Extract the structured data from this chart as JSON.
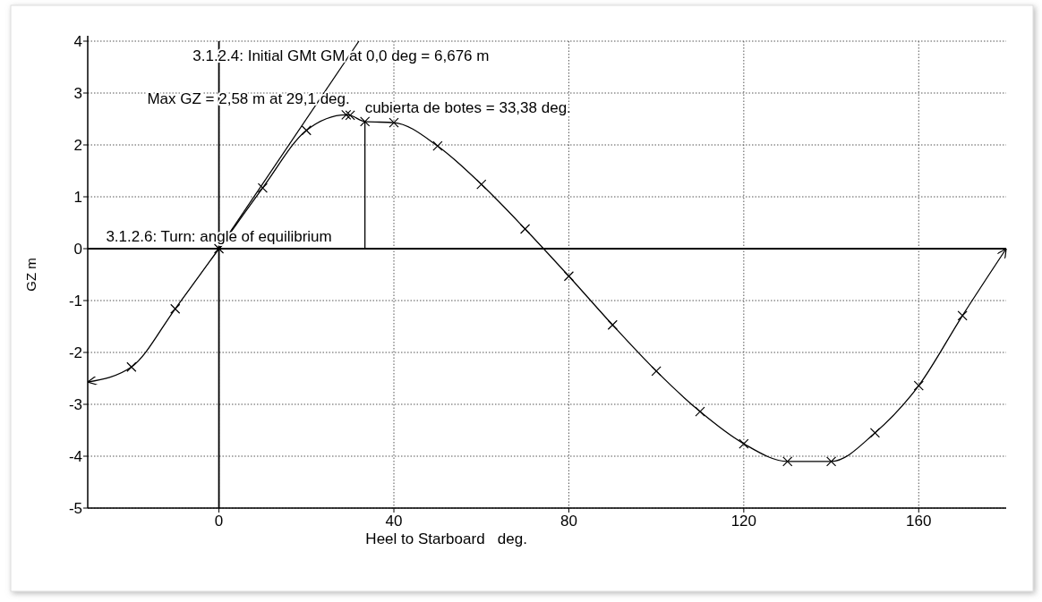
{
  "chart_data": {
    "type": "line",
    "xlabel": "Heel to Starboard   deg.",
    "ylabel": "GZ m",
    "xlim": [
      -30,
      180
    ],
    "ylim": [
      -5,
      4
    ],
    "xticks": [
      0,
      40,
      80,
      120,
      160
    ],
    "yticks": [
      -5,
      -4,
      -3,
      -2,
      -1,
      0,
      1,
      2,
      3,
      4
    ],
    "grid": true,
    "series": [
      {
        "color": "#000000",
        "marker": "none",
        "x": [
          0,
          0
        ],
        "values": [
          -5,
          4
        ]
      },
      {
        "color": "#000000",
        "marker": "none",
        "x": [
          -30,
          180
        ],
        "values": [
          0,
          0
        ]
      },
      {
        "color": "#000000",
        "marker": "cross",
        "x": [
          -30,
          -20,
          -10,
          0,
          10,
          20,
          29.1,
          30,
          33.38,
          40,
          50,
          60,
          70,
          80,
          90,
          100,
          110,
          120,
          130,
          140,
          150,
          160,
          170,
          180
        ],
        "values": [
          -2.57,
          -2.28,
          -1.16,
          0,
          1.17,
          2.28,
          2.58,
          2.57,
          2.45,
          2.43,
          1.98,
          1.24,
          0.38,
          -0.53,
          -1.47,
          -2.36,
          -3.14,
          -3.76,
          -4.1,
          -4.1,
          -3.55,
          -2.64,
          -1.29,
          0
        ]
      },
      {
        "color": "#000000",
        "marker": "none",
        "x": [
          0,
          32
        ],
        "values": [
          0,
          4
        ]
      },
      {
        "color": "#000000",
        "marker": "none",
        "x": [
          33.38,
          33.38
        ],
        "values": [
          0,
          2.45
        ]
      }
    ],
    "annotations": [
      "3.1.2.4: Initial GMt GM at 0,0 deg = 6,676 m",
      {
        "text": "3.1.2.6: Turn: angle of equilibrium",
        "x": 0,
        "y": 0
      },
      {
        "text": "Max GZ = 2,58 m at 29,1 deg.",
        "x": 29.1,
        "y": 2.58
      },
      {
        "text": "cubierta de botes = 33,38 deg.",
        "x": 33.38,
        "y": 2.45
      }
    ]
  }
}
